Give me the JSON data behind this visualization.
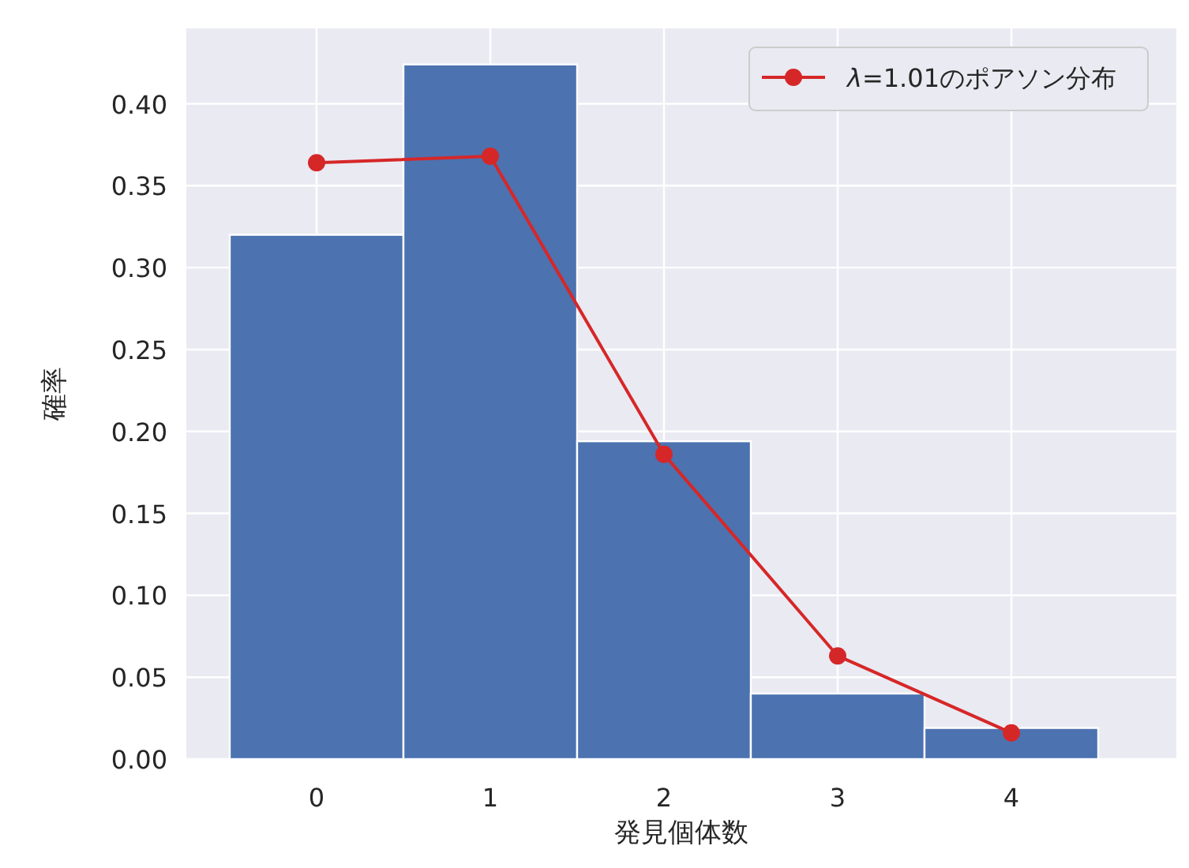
{
  "chart_data": {
    "type": "bar",
    "xlabel": "発見個体数",
    "ylabel": "確率",
    "x": [
      0,
      1,
      2,
      3,
      4
    ],
    "xlim": [
      -0.75,
      4.95
    ],
    "xticks": [
      0,
      1,
      2,
      3,
      4
    ],
    "ylim": [
      0,
      0.446
    ],
    "yticks": [
      {
        "value": 0,
        "label": "0.00"
      },
      {
        "value": 0.05,
        "label": "0.05"
      },
      {
        "value": 0.1,
        "label": "0.10"
      },
      {
        "value": 0.15,
        "label": "0.15"
      },
      {
        "value": 0.2,
        "label": "0.20"
      },
      {
        "value": 0.25,
        "label": "0.25"
      },
      {
        "value": 0.3,
        "label": "0.30"
      },
      {
        "value": 0.35,
        "label": "0.35"
      },
      {
        "value": 0.4,
        "label": "0.40"
      }
    ],
    "grid": true,
    "legend": "top right",
    "series": [
      {
        "color": "#4c72b0",
        "values": [
          0.32,
          0.424,
          0.194,
          0.04,
          0.019
        ]
      },
      {
        "type": "line",
        "name": "*λ*=1.01のポアソン分布",
        "color": "#d62728",
        "marker": "circle",
        "values": [
          0.364,
          0.368,
          0.186,
          0.063,
          0.016
        ]
      }
    ]
  }
}
